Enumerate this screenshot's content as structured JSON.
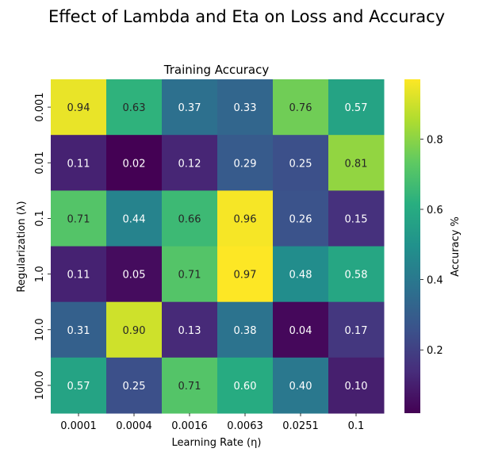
{
  "figure": {
    "suptitle": "Effect of Lambda and Eta on Loss and Accuracy"
  },
  "chart_data": {
    "type": "heatmap",
    "title": "Training Accuracy",
    "xlabel": "Learning Rate (η)",
    "ylabel": "Regularization (λ)",
    "x_categories": [
      "0.0001",
      "0.0004",
      "0.0016",
      "0.0063",
      "0.0251",
      "0.1"
    ],
    "y_categories": [
      "0.001",
      "0.01",
      "0.1",
      "1.0",
      "10.0",
      "100.0"
    ],
    "values": [
      [
        0.94,
        0.63,
        0.37,
        0.33,
        0.76,
        0.57
      ],
      [
        0.11,
        0.02,
        0.12,
        0.29,
        0.25,
        0.81
      ],
      [
        0.71,
        0.44,
        0.66,
        0.96,
        0.26,
        0.15
      ],
      [
        0.11,
        0.05,
        0.71,
        0.97,
        0.48,
        0.58
      ],
      [
        0.31,
        0.9,
        0.13,
        0.38,
        0.04,
        0.17
      ],
      [
        0.57,
        0.25,
        0.71,
        0.6,
        0.4,
        0.1
      ]
    ],
    "annotation_format": "0.00",
    "colormap": "viridis",
    "vmin": 0.02,
    "vmax": 0.97,
    "colorbar": {
      "label": "Accuracy %",
      "ticks": [
        0.2,
        0.4,
        0.6,
        0.8
      ],
      "tick_labels": [
        "0.2",
        "0.4",
        "0.6",
        "0.8"
      ]
    },
    "grid": false
  }
}
